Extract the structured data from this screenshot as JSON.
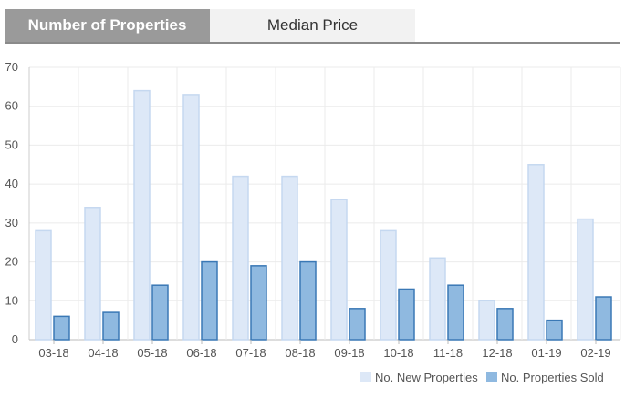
{
  "tabs": [
    {
      "label": "Number of Properties",
      "active": true
    },
    {
      "label": "Median Price",
      "active": false
    }
  ],
  "chart_data": {
    "type": "bar",
    "categories": [
      "03-18",
      "04-18",
      "05-18",
      "06-18",
      "07-18",
      "08-18",
      "09-18",
      "10-18",
      "11-18",
      "12-18",
      "01-19",
      "02-19"
    ],
    "series": [
      {
        "name": "No. New Properties",
        "values": [
          28,
          34,
          64,
          63,
          42,
          42,
          36,
          28,
          21,
          10,
          45,
          31
        ],
        "color": "#dde8f7",
        "stroke": "#c5d8f0"
      },
      {
        "name": "No. Properties Sold",
        "values": [
          6,
          7,
          14,
          20,
          19,
          20,
          8,
          13,
          14,
          8,
          5,
          11
        ],
        "color": "#8fb9e0",
        "stroke": "#3a78b5"
      }
    ],
    "ylim": [
      0,
      70
    ],
    "yticks": [
      0,
      10,
      20,
      30,
      40,
      50,
      60,
      70
    ],
    "grid": true,
    "legend": "bottom-right",
    "title": "",
    "xlabel": "",
    "ylabel": ""
  }
}
